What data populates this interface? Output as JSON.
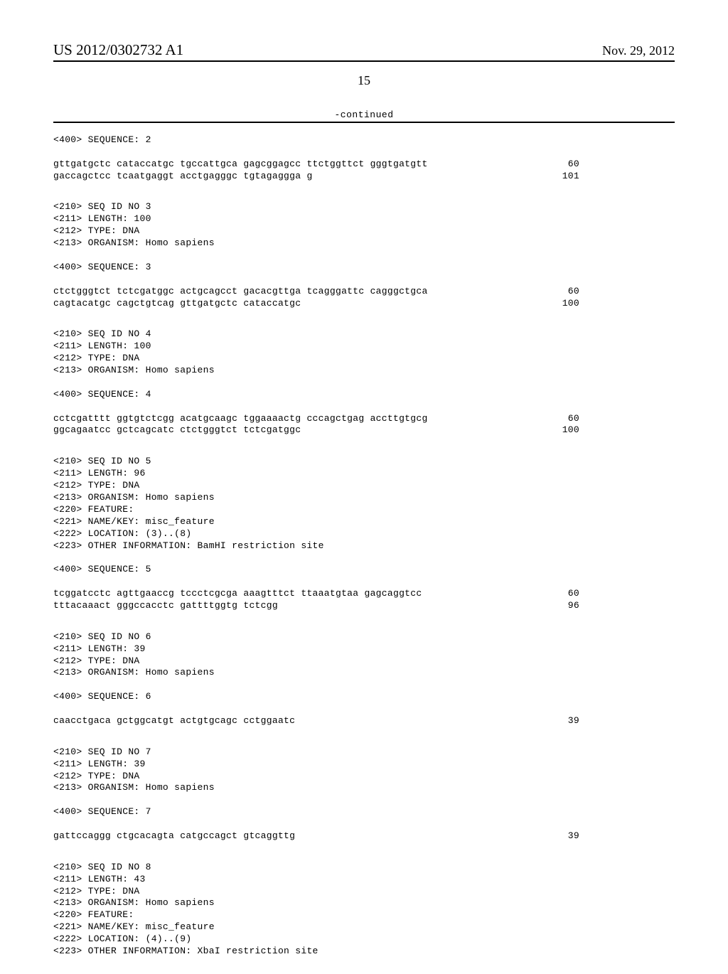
{
  "header": {
    "pub_number": "US 2012/0302732 A1",
    "pub_date": "Nov. 29, 2012",
    "page_num": "15",
    "continued": "-continued"
  },
  "sequences": [
    {
      "header_lines": [
        "<400> SEQUENCE: 2"
      ],
      "seq_lines": [
        {
          "text": "gttgatgctc cataccatgc tgccattgca gagcggagcc ttctggttct gggtgatgtt",
          "num": "60"
        },
        {
          "text": "gaccagctcc tcaatgaggt acctgagggc tgtagaggga g",
          "num": "101"
        }
      ]
    },
    {
      "header_lines": [
        "<210> SEQ ID NO 3",
        "<211> LENGTH: 100",
        "<212> TYPE: DNA",
        "<213> ORGANISM: Homo sapiens",
        "",
        "<400> SEQUENCE: 3"
      ],
      "seq_lines": [
        {
          "text": "ctctgggtct tctcgatggc actgcagcct gacacgttga tcagggattc cagggctgca",
          "num": "60"
        },
        {
          "text": "cagtacatgc cagctgtcag gttgatgctc cataccatgc",
          "num": "100"
        }
      ]
    },
    {
      "header_lines": [
        "<210> SEQ ID NO 4",
        "<211> LENGTH: 100",
        "<212> TYPE: DNA",
        "<213> ORGANISM: Homo sapiens",
        "",
        "<400> SEQUENCE: 4"
      ],
      "seq_lines": [
        {
          "text": "cctcgatttt ggtgtctcgg acatgcaagc tggaaaactg cccagctgag accttgtgcg",
          "num": "60"
        },
        {
          "text": "ggcagaatcc gctcagcatc ctctgggtct tctcgatggc",
          "num": "100"
        }
      ]
    },
    {
      "header_lines": [
        "<210> SEQ ID NO 5",
        "<211> LENGTH: 96",
        "<212> TYPE: DNA",
        "<213> ORGANISM: Homo sapiens",
        "<220> FEATURE:",
        "<221> NAME/KEY: misc_feature",
        "<222> LOCATION: (3)..(8)",
        "<223> OTHER INFORMATION: BamHI restriction site",
        "",
        "<400> SEQUENCE: 5"
      ],
      "seq_lines": [
        {
          "text": "tcggatcctc agttgaaccg tccctcgcga aaagtttct ttaaatgtaa gagcaggtcc",
          "num": "60"
        },
        {
          "text": "tttacaaact gggccacctc gattttggtg tctcgg",
          "num": "96"
        }
      ]
    },
    {
      "header_lines": [
        "<210> SEQ ID NO 6",
        "<211> LENGTH: 39",
        "<212> TYPE: DNA",
        "<213> ORGANISM: Homo sapiens",
        "",
        "<400> SEQUENCE: 6"
      ],
      "seq_lines": [
        {
          "text": "caacctgaca gctggcatgt actgtgcagc cctggaatc",
          "num": "39"
        }
      ]
    },
    {
      "header_lines": [
        "<210> SEQ ID NO 7",
        "<211> LENGTH: 39",
        "<212> TYPE: DNA",
        "<213> ORGANISM: Homo sapiens",
        "",
        "<400> SEQUENCE: 7"
      ],
      "seq_lines": [
        {
          "text": "gattccaggg ctgcacagta catgccagct gtcaggttg",
          "num": "39"
        }
      ]
    },
    {
      "header_lines": [
        "<210> SEQ ID NO 8",
        "<211> LENGTH: 43",
        "<212> TYPE: DNA",
        "<213> ORGANISM: Homo sapiens",
        "<220> FEATURE:",
        "<221> NAME/KEY: misc_feature",
        "<222> LOCATION: (4)..(9)",
        "<223> OTHER INFORMATION: XbaI restriction site"
      ],
      "seq_lines": []
    }
  ]
}
